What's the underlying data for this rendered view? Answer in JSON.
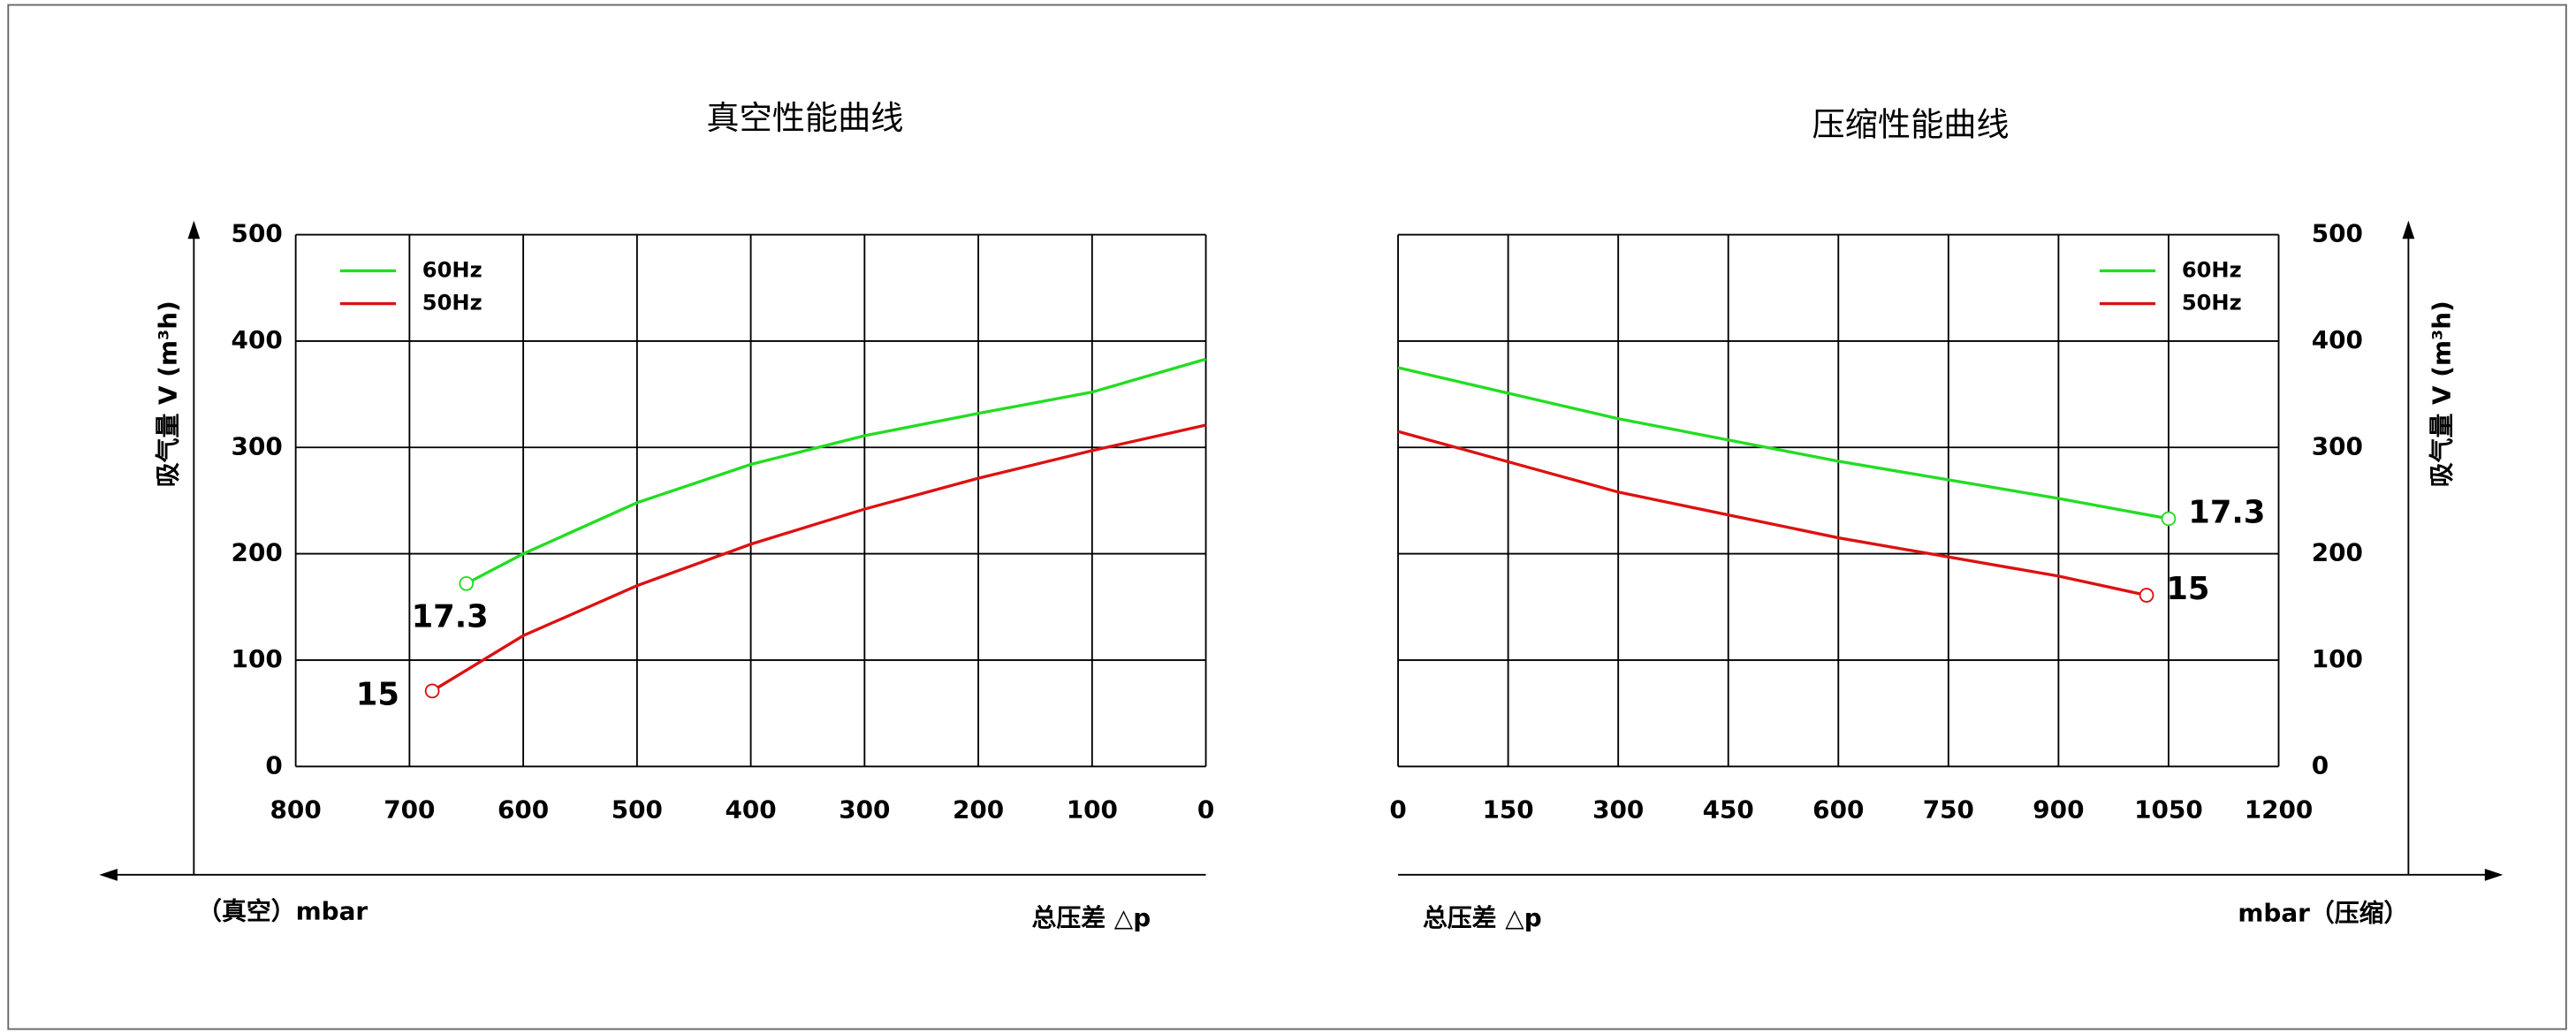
{
  "chart_data": [
    {
      "type": "line",
      "title": "真空性能曲线",
      "ylabel": "吸气量 V (m³h)",
      "xlabels": [
        "（真空）mbar",
        "总压差 △p"
      ],
      "xlim": [
        800,
        0
      ],
      "xticks": [
        800,
        700,
        600,
        500,
        400,
        300,
        200,
        100,
        0
      ],
      "ylim": [
        0,
        500
      ],
      "yticks": [
        0,
        100,
        200,
        300,
        400,
        500
      ],
      "y_axis_side": "left",
      "legend": "upper left",
      "grid": true,
      "series": [
        {
          "name": "60Hz",
          "color": "#22dd22",
          "annotation": "17.3",
          "x": [
            0,
            100,
            200,
            300,
            400,
            500,
            600,
            650
          ],
          "values": [
            383,
            352,
            332,
            311,
            284,
            248,
            200,
            172
          ]
        },
        {
          "name": "50Hz",
          "color": "#dd1111",
          "annotation": "15",
          "x": [
            0,
            100,
            200,
            300,
            400,
            500,
            600,
            680
          ],
          "values": [
            321,
            297,
            271,
            242,
            209,
            170,
            123,
            71
          ]
        }
      ]
    },
    {
      "type": "line",
      "title": "压缩性能曲线",
      "ylabel": "吸气量 V (m³h)",
      "xlabels": [
        "总压差 △p",
        "mbar（压缩）"
      ],
      "xlim": [
        0,
        1200
      ],
      "xticks": [
        0,
        150,
        300,
        450,
        600,
        750,
        900,
        1050,
        1200
      ],
      "ylim": [
        0,
        500
      ],
      "yticks": [
        0,
        100,
        200,
        300,
        400,
        500
      ],
      "y_axis_side": "right",
      "legend": "upper right",
      "grid": true,
      "series": [
        {
          "name": "60Hz",
          "color": "#22dd22",
          "annotation": "17.3",
          "x": [
            0,
            300,
            600,
            900,
            1050
          ],
          "values": [
            375,
            327,
            287,
            252,
            233
          ]
        },
        {
          "name": "50Hz",
          "color": "#dd1111",
          "annotation": "15",
          "x": [
            0,
            300,
            600,
            900,
            1020
          ],
          "values": [
            315,
            258,
            215,
            179,
            161
          ]
        }
      ]
    }
  ]
}
